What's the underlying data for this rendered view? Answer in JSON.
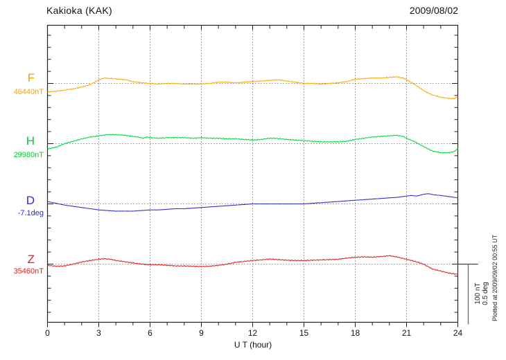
{
  "header": {
    "title": "Kakioka (KAK)",
    "date": "2009/08/02"
  },
  "x_axis": {
    "label": "U T (hour)",
    "ticks": [
      "0",
      "3",
      "6",
      "9",
      "12",
      "15",
      "18",
      "21",
      "24"
    ]
  },
  "scale_bar": {
    "nt_label": "100 nT",
    "deg_label": "0.5 deg"
  },
  "plotted_note": "Plotted at 2009/09/02 00:55 UT",
  "components": [
    {
      "letter": "F",
      "value_label": "46440nT",
      "color": "#F5A300"
    },
    {
      "letter": "H",
      "value_label": "29980nT",
      "color": "#00CC33"
    },
    {
      "letter": "D",
      "value_label": "-7.1deg",
      "color": "#2B2BCC"
    },
    {
      "letter": "Z",
      "value_label": "35460nT",
      "color": "#DD2222"
    }
  ],
  "colors": {
    "frame": "#222222",
    "grid": "#444444",
    "scalebar": "#777777"
  },
  "chart_data": {
    "type": "line",
    "title": "Kakioka (KAK)",
    "subtitle": "2009/08/02",
    "xlabel": "U T (hour)",
    "x_range": [
      0,
      24
    ],
    "x_major_tick": 3,
    "x_minor_tick": 1,
    "grid": "dotted vertical at 3h intervals; dotted horizontal reference line per component",
    "scale": {
      "bar_nT": 100,
      "bar_deg": 0.5
    },
    "series": [
      {
        "name": "F",
        "unit": "nT",
        "reference": 46440,
        "color": "#FFAA00",
        "points": [
          [
            0,
            -14
          ],
          [
            0.5,
            -13
          ],
          [
            1,
            -11
          ],
          [
            1.5,
            -9
          ],
          [
            2,
            -6
          ],
          [
            2.5,
            -2
          ],
          [
            3,
            6
          ],
          [
            3.3,
            9
          ],
          [
            3.8,
            8
          ],
          [
            4.2,
            7
          ],
          [
            4.6,
            6
          ],
          [
            5,
            3
          ],
          [
            5.5,
            1
          ],
          [
            6,
            0
          ],
          [
            6.5,
            -1
          ],
          [
            7,
            0
          ],
          [
            7.5,
            0
          ],
          [
            8,
            -1
          ],
          [
            8.5,
            -1
          ],
          [
            9,
            -1
          ],
          [
            9.5,
            0
          ],
          [
            10,
            2
          ],
          [
            10.5,
            2
          ],
          [
            11,
            1
          ],
          [
            11.5,
            2
          ],
          [
            12,
            3
          ],
          [
            12.5,
            4
          ],
          [
            13,
            5
          ],
          [
            13.5,
            6
          ],
          [
            14,
            4
          ],
          [
            14.5,
            2
          ],
          [
            15,
            0
          ],
          [
            15.5,
            0
          ],
          [
            16,
            -1
          ],
          [
            16.5,
            0
          ],
          [
            17,
            1
          ],
          [
            17.5,
            3
          ],
          [
            18,
            7
          ],
          [
            18.5,
            8
          ],
          [
            19,
            9
          ],
          [
            19.5,
            9
          ],
          [
            20,
            10
          ],
          [
            20.4,
            11
          ],
          [
            20.8,
            9
          ],
          [
            21,
            6
          ],
          [
            21.5,
            -2
          ],
          [
            22,
            -12
          ],
          [
            22.5,
            -19
          ],
          [
            23,
            -23
          ],
          [
            23.5,
            -25
          ],
          [
            23.8,
            -25
          ],
          [
            24,
            -22
          ]
        ]
      },
      {
        "name": "H",
        "unit": "nT",
        "reference": 29980,
        "color": "#00DD3A",
        "points": [
          [
            0,
            -9
          ],
          [
            0.5,
            -6
          ],
          [
            1,
            0
          ],
          [
            1.5,
            4
          ],
          [
            2,
            8
          ],
          [
            2.5,
            11
          ],
          [
            3,
            13
          ],
          [
            3.5,
            15
          ],
          [
            4,
            15
          ],
          [
            4.5,
            14
          ],
          [
            5,
            12
          ],
          [
            5.3,
            11
          ],
          [
            5.6,
            9
          ],
          [
            5.8,
            11
          ],
          [
            6,
            10
          ],
          [
            6.5,
            9
          ],
          [
            7,
            10
          ],
          [
            7.5,
            10
          ],
          [
            8,
            10
          ],
          [
            8.5,
            9
          ],
          [
            9,
            10
          ],
          [
            9.5,
            9
          ],
          [
            10,
            9
          ],
          [
            10.5,
            8
          ],
          [
            11,
            8
          ],
          [
            11.5,
            7
          ],
          [
            12,
            6
          ],
          [
            12.5,
            7
          ],
          [
            13,
            9
          ],
          [
            13.3,
            9
          ],
          [
            14,
            7
          ],
          [
            14.5,
            6
          ],
          [
            15,
            5
          ],
          [
            15.5,
            4
          ],
          [
            16,
            3
          ],
          [
            16.5,
            3
          ],
          [
            17,
            3
          ],
          [
            17.5,
            4
          ],
          [
            18,
            7
          ],
          [
            18.5,
            9
          ],
          [
            19,
            11
          ],
          [
            19.5,
            12
          ],
          [
            20,
            13
          ],
          [
            20.4,
            14
          ],
          [
            20.8,
            12
          ],
          [
            21,
            9
          ],
          [
            21.5,
            3
          ],
          [
            22,
            -5
          ],
          [
            22.5,
            -12
          ],
          [
            23,
            -15
          ],
          [
            23.5,
            -15
          ],
          [
            23.8,
            -13
          ],
          [
            24,
            -8
          ]
        ]
      },
      {
        "name": "D",
        "unit": "deg",
        "reference": -7.1,
        "color": "#3333CC",
        "points": [
          [
            0,
            0.02
          ],
          [
            0.5,
            0.005
          ],
          [
            1,
            -0.01
          ],
          [
            1.5,
            -0.02
          ],
          [
            2,
            -0.03
          ],
          [
            2.5,
            -0.04
          ],
          [
            3,
            -0.05
          ],
          [
            3.5,
            -0.055
          ],
          [
            4,
            -0.06
          ],
          [
            4.5,
            -0.06
          ],
          [
            5,
            -0.06
          ],
          [
            5.5,
            -0.055
          ],
          [
            6,
            -0.05
          ],
          [
            6.5,
            -0.05
          ],
          [
            7,
            -0.045
          ],
          [
            7.5,
            -0.04
          ],
          [
            8,
            -0.04
          ],
          [
            8.5,
            -0.035
          ],
          [
            9,
            -0.03
          ],
          [
            9.5,
            -0.025
          ],
          [
            10,
            -0.02
          ],
          [
            10.5,
            -0.015
          ],
          [
            11,
            -0.01
          ],
          [
            11.5,
            -0.005
          ],
          [
            12,
            0
          ],
          [
            13,
            0
          ],
          [
            14,
            0
          ],
          [
            15,
            0
          ],
          [
            15.5,
            0.005
          ],
          [
            16,
            0.01
          ],
          [
            16.5,
            0.015
          ],
          [
            17,
            0.02
          ],
          [
            17.5,
            0.025
          ],
          [
            18,
            0.03
          ],
          [
            18.5,
            0.035
          ],
          [
            19,
            0.04
          ],
          [
            19.5,
            0.045
          ],
          [
            20,
            0.05
          ],
          [
            20.5,
            0.055
          ],
          [
            21,
            0.065
          ],
          [
            21.3,
            0.07
          ],
          [
            21.6,
            0.065
          ],
          [
            22,
            0.08
          ],
          [
            22.3,
            0.085
          ],
          [
            22.6,
            0.075
          ],
          [
            23,
            0.07
          ],
          [
            23.5,
            0.06
          ],
          [
            24,
            0.05
          ]
        ]
      },
      {
        "name": "Z",
        "unit": "nT",
        "reference": 35460,
        "color": "#E02222",
        "points": [
          [
            0,
            -2
          ],
          [
            0.5,
            -3.5
          ],
          [
            1,
            -3
          ],
          [
            1.5,
            0
          ],
          [
            2,
            3.5
          ],
          [
            2.5,
            6
          ],
          [
            3,
            8
          ],
          [
            3.3,
            9
          ],
          [
            3.7,
            8
          ],
          [
            4,
            6
          ],
          [
            4.5,
            4
          ],
          [
            5,
            2
          ],
          [
            5.5,
            0
          ],
          [
            6,
            -1
          ],
          [
            6.5,
            -1
          ],
          [
            7,
            -2
          ],
          [
            7.5,
            -3
          ],
          [
            8,
            -3
          ],
          [
            8.5,
            -3.5
          ],
          [
            9,
            -4
          ],
          [
            9.5,
            -3.5
          ],
          [
            10,
            -2
          ],
          [
            10.5,
            0
          ],
          [
            11,
            3
          ],
          [
            11.5,
            4.5
          ],
          [
            12,
            6
          ],
          [
            12.5,
            7
          ],
          [
            13,
            8.5
          ],
          [
            13.5,
            7.5
          ],
          [
            14,
            6.5
          ],
          [
            14.5,
            6
          ],
          [
            15,
            6
          ],
          [
            15.5,
            6.5
          ],
          [
            16,
            7
          ],
          [
            16.5,
            7.5
          ],
          [
            17,
            8
          ],
          [
            17.5,
            10
          ],
          [
            18,
            11.5
          ],
          [
            18.5,
            12
          ],
          [
            19,
            11.5
          ],
          [
            19.5,
            12.5
          ],
          [
            20,
            14
          ],
          [
            20.5,
            11.5
          ],
          [
            21,
            8
          ],
          [
            21.5,
            4.5
          ],
          [
            22,
            0
          ],
          [
            22.5,
            -8
          ],
          [
            23,
            -11.5
          ],
          [
            23.5,
            -15
          ],
          [
            24,
            -17
          ]
        ]
      }
    ]
  }
}
